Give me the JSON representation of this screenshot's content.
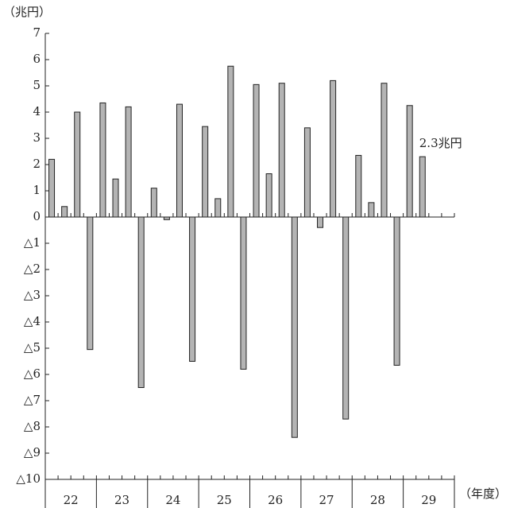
{
  "chart_data": {
    "type": "bar",
    "y_label": "（兆円）",
    "x_label": "（年度）",
    "years": [
      "22",
      "23",
      "24",
      "25",
      "26",
      "27",
      "28",
      "29"
    ],
    "values": [
      2.2,
      0.4,
      4.0,
      -5.05,
      4.35,
      1.45,
      4.2,
      -6.5,
      1.1,
      -0.1,
      4.3,
      -5.5,
      3.45,
      0.7,
      5.75,
      -5.8,
      5.05,
      1.65,
      5.1,
      -8.4,
      3.4,
      -0.4,
      5.2,
      -7.7,
      2.35,
      0.55,
      5.1,
      -5.65,
      4.25,
      2.3
    ],
    "color": "#b4b4b4",
    "ylim": [
      -10,
      7
    ],
    "yticks": [
      {
        "value": -10,
        "label": "△10"
      },
      {
        "value": -9,
        "label": "△9"
      },
      {
        "value": -8,
        "label": "△8"
      },
      {
        "value": -7,
        "label": "△7"
      },
      {
        "value": -6,
        "label": "△6"
      },
      {
        "value": -5,
        "label": "△5"
      },
      {
        "value": -4,
        "label": "△4"
      },
      {
        "value": -3,
        "label": "△3"
      },
      {
        "value": -2,
        "label": "△2"
      },
      {
        "value": -1,
        "label": "△1"
      },
      0,
      1,
      2,
      3,
      4,
      5,
      6,
      7
    ],
    "annotation": "2.3兆円"
  }
}
